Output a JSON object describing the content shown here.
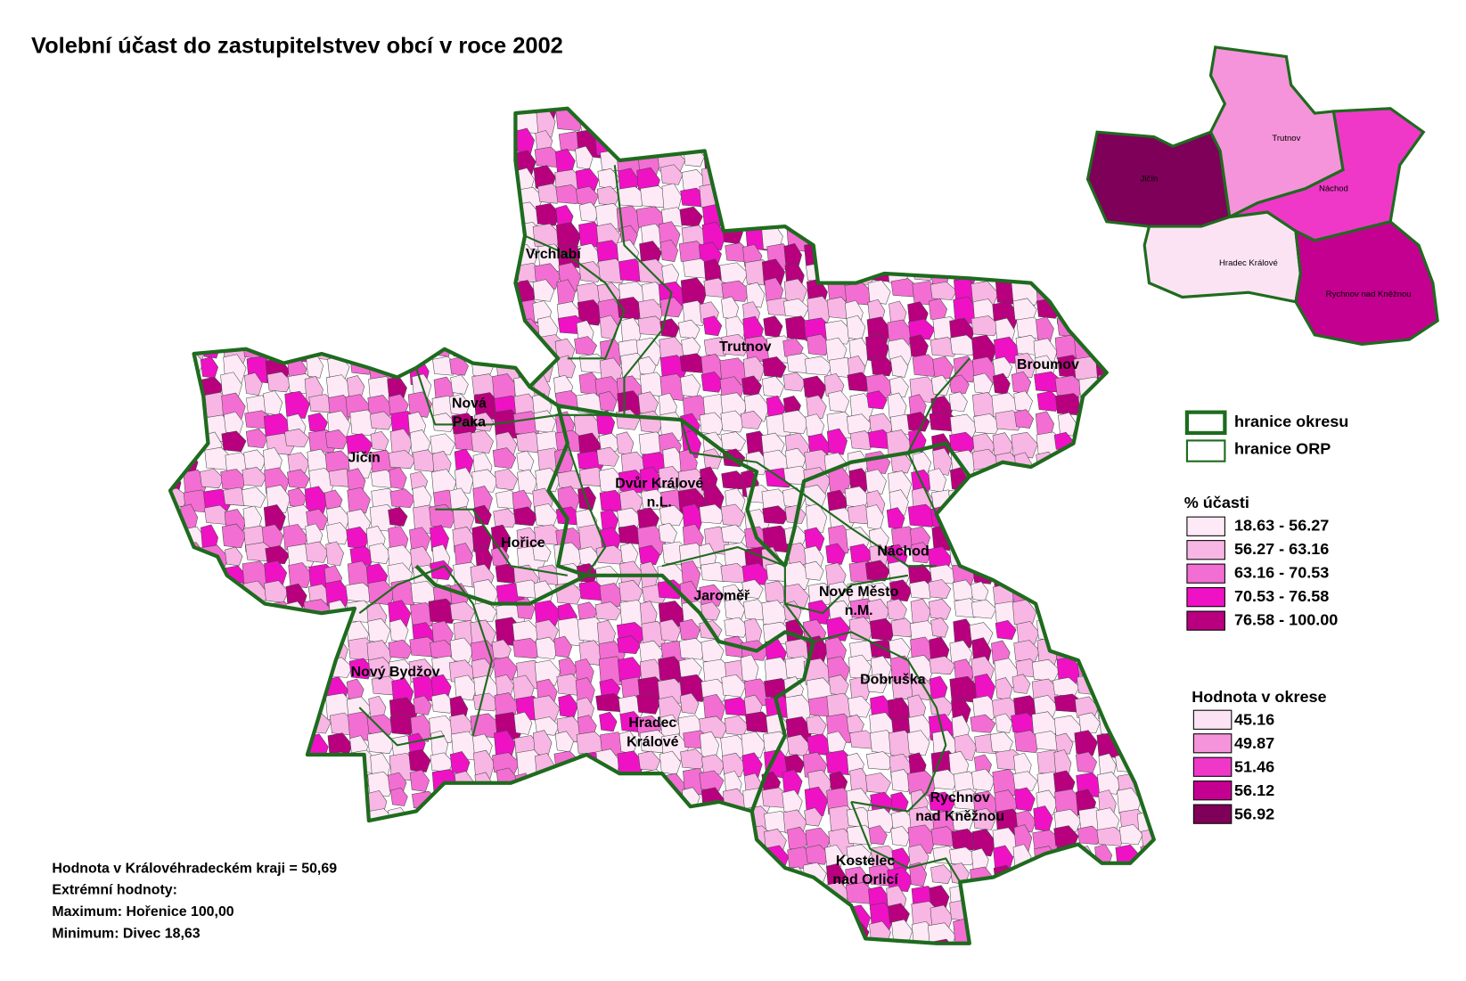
{
  "title": "Volební účast do zastupitelstvev obcí v roce 2002",
  "district_labels": {
    "vrchlabi": [
      "Vrchlabí"
    ],
    "trutnov": [
      "Trutnov"
    ],
    "broumov": [
      "Broumov"
    ],
    "nova_paka": [
      "Nová",
      "Paka"
    ],
    "jicin": [
      "Jičín"
    ],
    "dvur_kralove": [
      "Dvůr Králové",
      "n.L."
    ],
    "horice": [
      "Hořice"
    ],
    "nachod": [
      "Náchod"
    ],
    "jaromer": [
      "Jaroměř"
    ],
    "nove_mesto": [
      "Nové Město",
      "n.M."
    ],
    "novy_bydzov": [
      "Nový Bydžov"
    ],
    "dobruska": [
      "Dobruška"
    ],
    "hradec_kralove": [
      "Hradec",
      "Králové"
    ],
    "rychnov": [
      "Rychnov",
      "nad Kněžnou"
    ],
    "kostelec": [
      "Kostelec",
      "nad Orlicí"
    ]
  },
  "inset_labels": [
    "Trutnov",
    "Jičín",
    "Náchod",
    "Hradec Králové",
    "Rychnov nad Kněžnou"
  ],
  "legend_borders": [
    "hranice okresu",
    "hranice ORP"
  ],
  "legend_turnout": {
    "title": "% účasti",
    "classes": [
      "18.63 -  56.27",
      "56.27 -  63.16",
      "63.16 -  70.53",
      "70.53 -  76.58",
      "76.58 - 100.00"
    ],
    "colors": [
      "#fdeaf6",
      "#f8b6e4",
      "#f36ed2",
      "#ee12c4",
      "#b8007f"
    ]
  },
  "legend_district": {
    "title": "Hodnota v okrese",
    "values": [
      "45.16",
      "49.87",
      "51.46",
      "56.12",
      "56.92"
    ],
    "colors": [
      "#fce3f4",
      "#f594da",
      "#ef38c8",
      "#c40090",
      "#7e0058"
    ]
  },
  "notes": [
    "Hodnota v Královéhradeckém kraji = 50,69",
    "Extrémní hodnoty:",
    "Maximum: Hořenice 100,00",
    "Minimum:  Divec 18,63"
  ]
}
